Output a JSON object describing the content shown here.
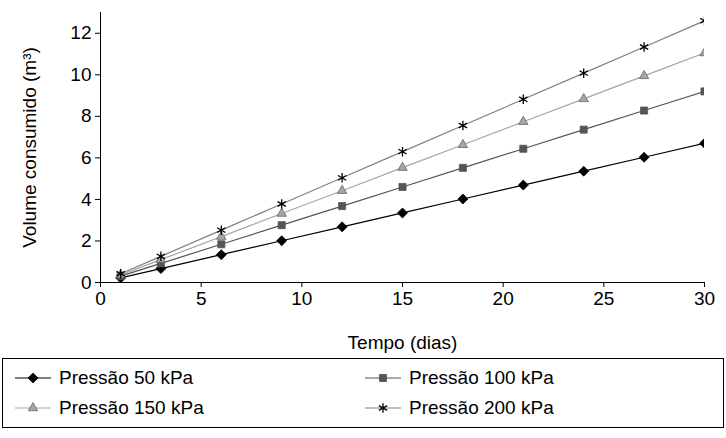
{
  "chart_data": {
    "type": "line",
    "x_label": "Tempo (dias)",
    "y_label": "Volume consumido (m³)",
    "x": [
      1,
      3,
      6,
      9,
      12,
      15,
      18,
      21,
      24,
      27,
      30
    ],
    "series": [
      {
        "name": "Pressão 50 kPa",
        "color": "#000000",
        "marker": "diamond",
        "values": [
          0.22,
          0.67,
          1.34,
          2.01,
          2.68,
          3.35,
          4.02,
          4.69,
          5.36,
          6.03,
          6.7
        ]
      },
      {
        "name": "Pressão 100 kPa",
        "color": "#555555",
        "marker": "square",
        "values": [
          0.31,
          0.92,
          1.84,
          2.76,
          3.68,
          4.6,
          5.52,
          6.44,
          7.36,
          8.28,
          9.2
        ]
      },
      {
        "name": "Pressão 150 kPa",
        "color": "#a6a6a6",
        "marker": "triangle",
        "values": [
          0.37,
          1.1,
          2.21,
          3.32,
          4.42,
          5.53,
          6.63,
          7.74,
          8.84,
          9.95,
          11.05
        ]
      },
      {
        "name": "Pressão 200 kPa",
        "color": "#808080",
        "marker": "asterisk",
        "values": [
          0.42,
          1.26,
          2.52,
          3.78,
          5.04,
          6.3,
          7.56,
          8.82,
          10.08,
          11.34,
          12.6
        ]
      }
    ],
    "xlim": [
      0,
      30
    ],
    "xticks": [
      0,
      5,
      10,
      15,
      20,
      25,
      30
    ],
    "ylim": [
      0,
      13
    ],
    "yticks": [
      0,
      2,
      4,
      6,
      8,
      10,
      12
    ],
    "grid": false,
    "legend": "bottom"
  }
}
